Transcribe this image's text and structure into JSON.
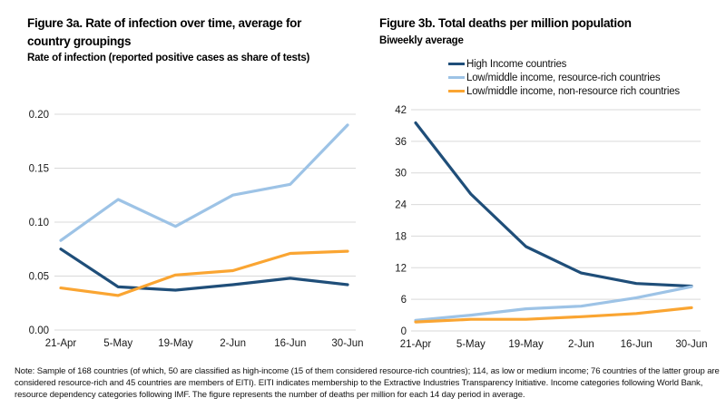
{
  "figure_a": {
    "title": "Figure 3a. Rate of infection over time, average for country groupings",
    "subtitle": "Rate of infection (reported positive cases as share of tests)"
  },
  "figure_b": {
    "title": "Figure 3b. Total deaths per million population",
    "subtitle": "Biweekly average"
  },
  "legend": [
    {
      "label": "High Income countries",
      "color": "#1F4E79"
    },
    {
      "label": "Low/middle income, resource-rich countries",
      "color": "#9DC3E6"
    },
    {
      "label": "Low/middle income, non-resource rich countries",
      "color": "#FAA532"
    }
  ],
  "note": "Note: Sample of 168 countries (of which, 50 are classified as high-income (15 of them considered resource-rich countries); 114, as low or medium income; 76 countries of the latter group are considered resource-rich and 45 countries are members of EITI). EITI indicates membership to the Extractive Industries Transparency Initiative. Income categories following World Bank, resource dependency categories following IMF. The figure represents the number of deaths per million for each 14 day period in average.",
  "colors": {
    "grid": "#D9D9D9",
    "axis_text": "#1a1a1a"
  },
  "chart_data": [
    {
      "type": "line",
      "title": "Figure 3a. Rate of infection over time, average for country groupings",
      "subtitle": "Rate of infection (reported positive cases as share of tests)",
      "categories": [
        "21-Apr",
        "5-May",
        "19-May",
        "2-Jun",
        "16-Jun",
        "30-Jun"
      ],
      "series": [
        {
          "name": "High Income countries",
          "color": "#1F4E79",
          "values": [
            0.075,
            0.04,
            0.037,
            0.042,
            0.048,
            0.042
          ]
        },
        {
          "name": "Low/middle income, resource-rich countries",
          "color": "#9DC3E6",
          "values": [
            0.083,
            0.121,
            0.096,
            0.125,
            0.135,
            0.19
          ]
        },
        {
          "name": "Low/middle income, non-resource rich countries",
          "color": "#FAA532",
          "values": [
            0.039,
            0.032,
            0.051,
            0.055,
            0.071,
            0.073
          ]
        }
      ],
      "xlabel": "",
      "ylabel": "",
      "ylim": [
        0,
        0.205
      ],
      "yticks": [
        0,
        0.05,
        0.1,
        0.15,
        0.2
      ],
      "ytick_labels": [
        "0.00",
        "0.05",
        "0.10",
        "0.15",
        "0.20"
      ],
      "grid": true,
      "legend_position": "none"
    },
    {
      "type": "line",
      "title": "Figure 3b. Total deaths per million population",
      "subtitle": "Biweekly average",
      "categories": [
        "21-Apr",
        "5-May",
        "19-May",
        "2-Jun",
        "16-Jun",
        "30-Jun"
      ],
      "series": [
        {
          "name": "High Income countries",
          "color": "#1F4E79",
          "values": [
            39.5,
            26,
            16,
            11,
            9,
            8.5
          ]
        },
        {
          "name": "Low/middle income, resource-rich countries",
          "color": "#9DC3E6",
          "values": [
            2.0,
            3.0,
            4.2,
            4.7,
            6.3,
            8.4
          ]
        },
        {
          "name": "Low/middle income, non-resource rich countries",
          "color": "#FAA532",
          "values": [
            1.7,
            2.2,
            2.2,
            2.7,
            3.3,
            4.4
          ]
        }
      ],
      "xlabel": "",
      "ylabel": "",
      "ylim": [
        0,
        42
      ],
      "yticks": [
        0,
        6,
        12,
        18,
        24,
        30,
        36,
        42
      ],
      "ytick_labels": [
        "0",
        "6",
        "12",
        "18",
        "24",
        "30",
        "36",
        "42"
      ],
      "grid": true,
      "legend_position": "top"
    }
  ]
}
